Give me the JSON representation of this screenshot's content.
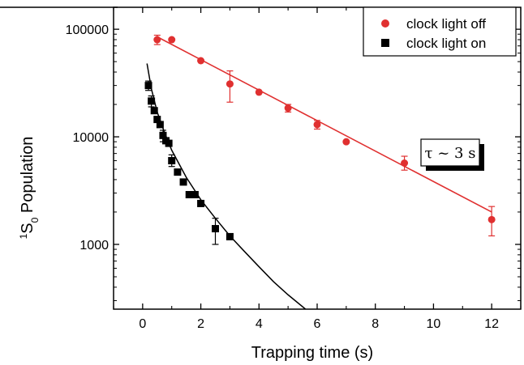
{
  "chart_data": {
    "type": "scatter",
    "xlabel": "Trapping time (s)",
    "ylabel_parts": {
      "sup": "1",
      "main": "S",
      "sub": "0",
      "rest": " Population"
    },
    "x_scale": "linear",
    "y_scale": "log",
    "xlim": [
      -1,
      13
    ],
    "ylim": [
      250,
      160000
    ],
    "x_ticks": [
      0,
      2,
      4,
      6,
      8,
      10,
      12
    ],
    "x_tick_labels": [
      "0",
      "2",
      "4",
      "6",
      "8",
      "10",
      "12"
    ],
    "y_ticks": [
      1000,
      10000,
      100000
    ],
    "y_tick_labels": [
      "1000",
      "10000",
      "100000"
    ],
    "legend_position": "top-right",
    "grid": false,
    "series": [
      {
        "name": "clock light off",
        "marker": "circle",
        "color": "#e03030",
        "points": [
          {
            "x": 0.5,
            "y": 80000,
            "err": [
              72000,
              88000
            ]
          },
          {
            "x": 1.0,
            "y": 80000,
            "err": null
          },
          {
            "x": 2.0,
            "y": 51000,
            "err": null
          },
          {
            "x": 3.0,
            "y": 31000,
            "err": [
              21000,
              41000
            ]
          },
          {
            "x": 4.0,
            "y": 26000,
            "err": null
          },
          {
            "x": 5.0,
            "y": 18500,
            "err": [
              17000,
              20000
            ]
          },
          {
            "x": 6.0,
            "y": 13000,
            "err": [
              11800,
              14200
            ]
          },
          {
            "x": 7.0,
            "y": 9000,
            "err": null
          },
          {
            "x": 9.0,
            "y": 5700,
            "err": [
              4900,
              6600
            ]
          },
          {
            "x": 12.0,
            "y": 1700,
            "err": [
              1200,
              2250
            ]
          }
        ],
        "fit": {
          "kind": "exponential",
          "x_start": 0.5,
          "x_end": 12.0,
          "y_start": 85000,
          "y_end": 2000
        }
      },
      {
        "name": "clock light on",
        "marker": "square",
        "color": "#000000",
        "points": [
          {
            "x": 0.2,
            "y": 30000,
            "err": [
              27000,
              33000
            ]
          },
          {
            "x": 0.3,
            "y": 21500,
            "err": [
              19000,
              24000
            ]
          },
          {
            "x": 0.4,
            "y": 17500,
            "err": null
          },
          {
            "x": 0.5,
            "y": 14500,
            "err": null
          },
          {
            "x": 0.6,
            "y": 13000,
            "err": null
          },
          {
            "x": 0.7,
            "y": 10300,
            "err": [
              9000,
              11500
            ]
          },
          {
            "x": 0.8,
            "y": 9200,
            "err": null
          },
          {
            "x": 0.9,
            "y": 8700,
            "err": null
          },
          {
            "x": 1.0,
            "y": 6000,
            "err": [
              5300,
              6800
            ]
          },
          {
            "x": 1.2,
            "y": 4700,
            "err": null
          },
          {
            "x": 1.4,
            "y": 3800,
            "err": null
          },
          {
            "x": 1.6,
            "y": 2900,
            "err": null
          },
          {
            "x": 1.8,
            "y": 2900,
            "err": null
          },
          {
            "x": 2.0,
            "y": 2400,
            "err": null
          },
          {
            "x": 2.5,
            "y": 1400,
            "err": [
              1000,
              1750
            ]
          },
          {
            "x": 3.0,
            "y": 1180,
            "err": null
          }
        ],
        "fit_curve": [
          [
            0.15,
            48000
          ],
          [
            0.3,
            28000
          ],
          [
            0.5,
            17000
          ],
          [
            0.75,
            11000
          ],
          [
            1.0,
            7500
          ],
          [
            1.5,
            4200
          ],
          [
            2.0,
            2600
          ],
          [
            2.5,
            1750
          ],
          [
            3.0,
            1200
          ],
          [
            3.5,
            860
          ],
          [
            4.0,
            620
          ],
          [
            4.5,
            450
          ],
          [
            5.0,
            340
          ],
          [
            5.6,
            250
          ]
        ]
      }
    ],
    "annotation": {
      "text": "τ ~ 3 s",
      "x": 9.6,
      "y": 9000
    }
  }
}
